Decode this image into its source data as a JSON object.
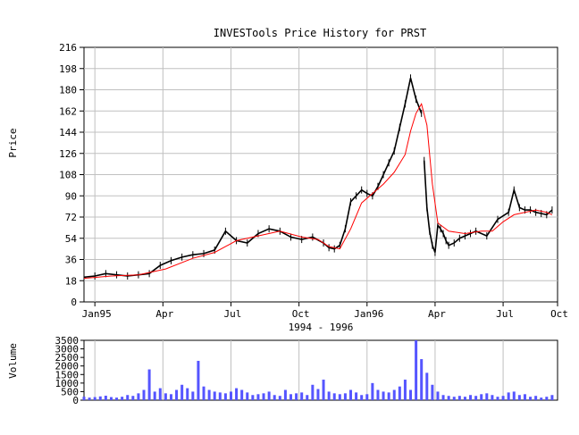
{
  "chart_data": [
    {
      "type": "line",
      "title": "INVESTools Price History for PRST",
      "xlabel": "1994 - 1996",
      "ylabel": "Price",
      "ylim": [
        0,
        216
      ],
      "yticks": [
        0,
        18,
        36,
        54,
        72,
        90,
        108,
        126,
        144,
        162,
        180,
        198,
        216
      ],
      "xtick_labels": [
        "Jan95",
        "Apr",
        "Jul",
        "Oct",
        "Jan96",
        "Apr",
        "Jul",
        "Oct"
      ],
      "grid": true,
      "colors": {
        "price": "#000000",
        "moving_average": "#ff0000"
      },
      "series": [
        {
          "kind": "price",
          "x": [
            0,
            4,
            8,
            12,
            16,
            20,
            24,
            28,
            32,
            36,
            40,
            44,
            48,
            52,
            56,
            60,
            64,
            68,
            72,
            76,
            80,
            84,
            88,
            90,
            92,
            94,
            96,
            98,
            100,
            102,
            104,
            106,
            108,
            110,
            112,
            114,
            116,
            118,
            120,
            122,
            124
          ],
          "values": [
            21,
            22,
            24,
            23,
            22,
            23,
            24,
            31,
            35,
            38,
            40,
            41,
            44,
            60,
            52,
            50,
            58,
            62,
            60,
            55,
            53,
            55,
            50,
            46,
            45,
            48,
            62,
            85,
            90,
            95,
            92,
            90,
            98,
            108,
            118,
            128,
            148,
            168,
            190,
            172,
            160
          ]
        },
        {
          "kind": "price",
          "x": [
            125,
            126,
            127,
            128,
            129,
            130,
            131,
            132,
            133,
            134,
            136,
            138,
            140,
            142,
            144,
            148,
            152,
            156,
            158,
            160,
            162,
            164,
            166,
            168,
            170,
            172
          ],
          "values": [
            120,
            80,
            60,
            48,
            42,
            65,
            62,
            58,
            52,
            48,
            50,
            54,
            56,
            58,
            60,
            56,
            70,
            76,
            95,
            80,
            78,
            78,
            76,
            75,
            74,
            78
          ]
        },
        {
          "kind": "moving_average",
          "x": [
            0,
            10,
            20,
            30,
            40,
            48,
            56,
            64,
            72,
            80,
            86,
            90,
            94,
            98,
            102,
            106,
            110,
            114,
            118,
            120,
            122,
            124,
            126,
            128,
            130,
            134,
            140,
            146,
            150,
            154,
            158,
            162,
            166,
            170,
            172
          ],
          "values": [
            20,
            22,
            23,
            28,
            37,
            42,
            52,
            56,
            60,
            55,
            53,
            47,
            45,
            62,
            84,
            92,
            100,
            110,
            125,
            145,
            160,
            168,
            150,
            100,
            67,
            60,
            58,
            60,
            60,
            68,
            74,
            76,
            78,
            76,
            74
          ]
        }
      ]
    },
    {
      "type": "bar",
      "ylabel": "Volume",
      "ylim": [
        0,
        3500
      ],
      "yticks": [
        0,
        500,
        1000,
        1500,
        2000,
        2500,
        3000,
        3500
      ],
      "color": "#5555ff",
      "x": [
        0,
        2,
        4,
        6,
        8,
        10,
        12,
        14,
        16,
        18,
        20,
        22,
        24,
        26,
        28,
        30,
        32,
        34,
        36,
        38,
        40,
        42,
        44,
        46,
        48,
        50,
        52,
        54,
        56,
        58,
        60,
        62,
        64,
        66,
        68,
        70,
        72,
        74,
        76,
        78,
        80,
        82,
        84,
        86,
        88,
        90,
        92,
        94,
        96,
        98,
        100,
        102,
        104,
        106,
        108,
        110,
        112,
        114,
        116,
        118,
        120,
        122,
        124,
        126,
        128,
        130,
        132,
        134,
        136,
        138,
        140,
        142,
        144,
        146,
        148,
        150,
        152,
        154,
        156,
        158,
        160,
        162,
        164,
        166,
        168,
        170,
        172
      ],
      "values": [
        200,
        150,
        180,
        220,
        260,
        180,
        150,
        200,
        300,
        250,
        400,
        600,
        1800,
        500,
        700,
        400,
        350,
        600,
        900,
        700,
        500,
        2300,
        800,
        600,
        500,
        450,
        400,
        500,
        700,
        600,
        450,
        300,
        350,
        400,
        500,
        300,
        250,
        600,
        350,
        400,
        450,
        300,
        900,
        650,
        1200,
        500,
        400,
        350,
        400,
        600,
        450,
        300,
        350,
        1000,
        600,
        500,
        450,
        600,
        800,
        1200,
        600,
        3500,
        2400,
        1600,
        900,
        500,
        300,
        250,
        200,
        250,
        200,
        300,
        250,
        350,
        400,
        300,
        200,
        250,
        450,
        500,
        300,
        350,
        200,
        250,
        150,
        200,
        300
      ]
    }
  ]
}
